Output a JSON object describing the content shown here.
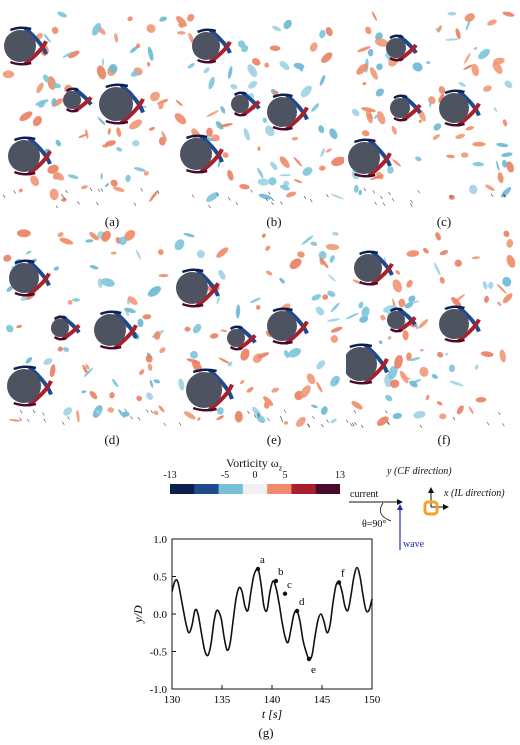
{
  "panels": [
    {
      "label": "(a)"
    },
    {
      "label": "(b)"
    },
    {
      "label": "(c)"
    },
    {
      "label": "(d)"
    },
    {
      "label": "(e)"
    },
    {
      "label": "(f)"
    }
  ],
  "colorbar": {
    "title": "Vorticity ω",
    "title_sub": "z",
    "ticks": [
      "-13",
      "-5",
      "0",
      "5",
      "13"
    ],
    "colors": [
      "#0d1f4f",
      "#1f4a8c",
      "#78c0d8",
      "#f0f0f0",
      "#ef8a6a",
      "#a8202c",
      "#4a0b2a"
    ]
  },
  "legend": {
    "y_axis": "y (CF direction)",
    "x_axis": "x (IL direction)",
    "current": "current",
    "theta": "θ=90°",
    "wave": "wave",
    "colors": {
      "cylinder": "#f3a32b",
      "wave": "#1a2fb5"
    }
  },
  "plot_label": "(g)",
  "chart_data": {
    "type": "line",
    "xlabel": "t [s]",
    "ylabel": "y/D",
    "xlim": [
      130,
      150
    ],
    "ylim": [
      -1.0,
      1.0
    ],
    "xticks": [
      "130",
      "135",
      "140",
      "145",
      "150"
    ],
    "yticks": [
      "1.0",
      "0.5",
      "0.0",
      "-0.5",
      "-1.0"
    ],
    "series": [
      {
        "x": [
          130.0,
          130.3,
          130.6,
          131.0,
          131.4,
          131.7,
          132.0,
          132.3,
          132.6,
          133.0,
          133.3,
          133.6,
          133.9,
          134.2,
          134.5,
          134.9,
          135.2,
          135.5,
          135.8,
          136.1,
          136.4,
          136.7,
          137.0,
          137.3,
          137.6,
          137.9,
          138.2,
          138.6,
          138.9,
          139.2,
          139.5,
          139.8,
          140.1,
          140.4,
          140.7,
          141.0,
          141.3,
          141.6,
          141.9,
          142.2,
          142.5,
          142.8,
          143.1,
          143.4,
          143.7,
          144.0,
          144.3,
          144.6,
          144.9,
          145.2,
          145.5,
          145.8,
          146.1,
          146.4,
          146.7,
          147.0,
          147.3,
          147.6,
          147.9,
          148.2,
          148.5,
          148.8,
          149.1,
          149.4,
          149.7,
          150.0
        ],
        "y": [
          0.3,
          0.44,
          0.42,
          0.15,
          -0.13,
          -0.25,
          -0.15,
          0.05,
          0.0,
          -0.3,
          -0.5,
          -0.55,
          -0.4,
          -0.1,
          0.05,
          -0.05,
          -0.3,
          -0.48,
          -0.4,
          -0.1,
          0.2,
          0.35,
          0.3,
          0.1,
          0.05,
          0.3,
          0.52,
          0.6,
          0.4,
          0.1,
          0.05,
          0.3,
          0.44,
          0.35,
          0.15,
          -0.1,
          -0.3,
          -0.38,
          -0.2,
          0.0,
          0.04,
          -0.1,
          -0.35,
          -0.5,
          -0.6,
          -0.55,
          -0.3,
          -0.08,
          0.0,
          -0.1,
          -0.25,
          -0.15,
          0.15,
          0.38,
          0.42,
          0.3,
          0.1,
          0.05,
          0.25,
          0.5,
          0.62,
          0.5,
          0.25,
          0.05,
          0.05,
          0.2
        ]
      }
    ],
    "annotations": [
      {
        "text": "a",
        "x": 138.6,
        "y": 0.6
      },
      {
        "text": "b",
        "x": 140.4,
        "y": 0.44
      },
      {
        "text": "c",
        "x": 141.3,
        "y": 0.27
      },
      {
        "text": "d",
        "x": 142.5,
        "y": 0.04
      },
      {
        "text": "e",
        "x": 143.7,
        "y": -0.6
      },
      {
        "text": "f",
        "x": 146.7,
        "y": 0.42
      }
    ]
  }
}
